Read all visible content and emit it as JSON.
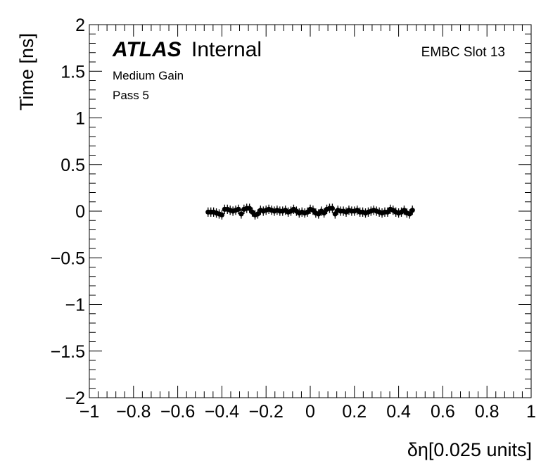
{
  "chart_data": {
    "type": "scatter",
    "xlabel": "δη[0.025 units]",
    "ylabel": "Time [ns]",
    "xlim": [
      -1,
      1
    ],
    "ylim": [
      -2,
      2
    ],
    "x_ticks": [
      "−1",
      "−0.8",
      "−0.6",
      "−0.4",
      "−0.2",
      "0",
      "0.2",
      "0.4",
      "0.6",
      "0.8",
      "1"
    ],
    "y_ticks": [
      "−2",
      "−1.5",
      "−1",
      "−0.5",
      "0",
      "0.5",
      "1",
      "1.5",
      "2"
    ],
    "annotations": {
      "atlas": "ATLAS",
      "internal": "Internal",
      "gain": "Medium Gain",
      "pass": "Pass 5",
      "slot": "EMBC Slot 13"
    },
    "grid": false,
    "legend": "none",
    "series": [
      {
        "marker_color": "#000000",
        "x": [
          -0.4625,
          -0.45,
          -0.4375,
          -0.425,
          -0.4125,
          -0.4,
          -0.3875,
          -0.375,
          -0.3625,
          -0.35,
          -0.3375,
          -0.325,
          -0.3125,
          -0.3,
          -0.2875,
          -0.275,
          -0.2625,
          -0.25,
          -0.2375,
          -0.225,
          -0.2125,
          -0.2,
          -0.1875,
          -0.175,
          -0.1625,
          -0.15,
          -0.1375,
          -0.125,
          -0.1125,
          -0.1,
          -0.0875,
          -0.075,
          -0.0625,
          -0.05,
          -0.0375,
          -0.025,
          -0.0125,
          0.0,
          0.0125,
          0.025,
          0.0375,
          0.05,
          0.0625,
          0.075,
          0.0875,
          0.1,
          0.1125,
          0.125,
          0.1375,
          0.15,
          0.1625,
          0.175,
          0.1875,
          0.2,
          0.2125,
          0.225,
          0.2375,
          0.25,
          0.2625,
          0.275,
          0.2875,
          0.3,
          0.3125,
          0.325,
          0.3375,
          0.35,
          0.3625,
          0.375,
          0.3875,
          0.4,
          0.4125,
          0.425,
          0.4375,
          0.45,
          0.4625
        ],
        "y": [
          -0.01,
          -0.01,
          -0.01,
          -0.02,
          -0.03,
          -0.04,
          0.02,
          0.02,
          0.01,
          0.0,
          0.01,
          0.02,
          -0.03,
          0.02,
          0.03,
          0.03,
          -0.01,
          -0.04,
          -0.03,
          0.01,
          0.0,
          0.01,
          0.02,
          0.01,
          0.0,
          0.01,
          0.0,
          0.0,
          0.01,
          -0.01,
          0.0,
          0.02,
          0.0,
          -0.02,
          -0.01,
          -0.02,
          -0.01,
          0.02,
          0.01,
          -0.02,
          -0.03,
          0.0,
          -0.02,
          0.02,
          0.03,
          0.03,
          -0.03,
          0.01,
          0.0,
          0.0,
          -0.01,
          0.01,
          0.0,
          0.0,
          0.01,
          -0.01,
          -0.01,
          -0.02,
          -0.01,
          0.0,
          0.01,
          0.0,
          -0.01,
          -0.02,
          -0.01,
          -0.01,
          0.02,
          0.01,
          -0.01,
          -0.02,
          -0.01,
          0.01,
          -0.02,
          -0.03,
          0.01
        ],
        "y_error": 0.05
      }
    ]
  }
}
